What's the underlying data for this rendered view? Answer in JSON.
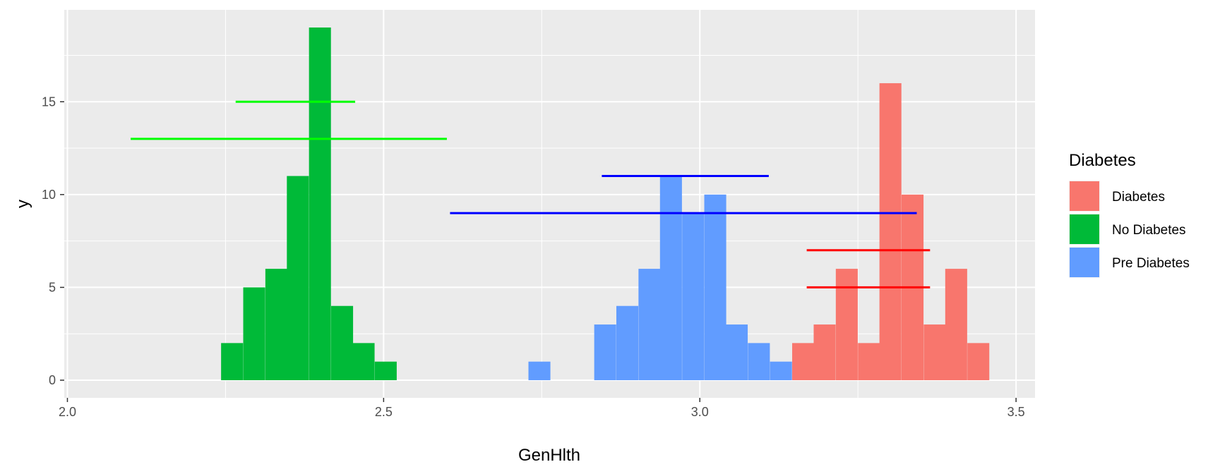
{
  "chart_data": {
    "type": "bar",
    "title": "",
    "xlabel": "GenHlth",
    "ylabel": "y",
    "xlim": [
      1.995,
      3.53
    ],
    "ylim": [
      -0.95,
      19.95
    ],
    "x_ticks": [
      2.0,
      2.5,
      3.0,
      3.5
    ],
    "x_tick_labels": [
      "2.0",
      "2.5",
      "3.0",
      "3.5"
    ],
    "y_ticks": [
      0,
      5,
      10,
      15
    ],
    "y_tick_labels": [
      "0",
      "5",
      "10",
      "15"
    ],
    "grid": true,
    "bin_width": 0.0347,
    "legend": {
      "title": "Diabetes",
      "placement": "right",
      "entries": [
        {
          "label": "Diabetes",
          "color": "#F8766D"
        },
        {
          "label": "No Diabetes",
          "color": "#00BA38"
        },
        {
          "label": "Pre Diabetes",
          "color": "#619CFF"
        }
      ]
    },
    "series": [
      {
        "name": "No Diabetes",
        "color": "#00BA38",
        "bins": [
          {
            "x0": 2.243,
            "count": 2
          },
          {
            "x0": 2.278,
            "count": 5
          },
          {
            "x0": 2.313,
            "count": 6
          },
          {
            "x0": 2.347,
            "count": 11
          },
          {
            "x0": 2.382,
            "count": 19
          },
          {
            "x0": 2.417,
            "count": 4
          },
          {
            "x0": 2.451,
            "count": 2
          },
          {
            "x0": 2.486,
            "count": 1
          }
        ]
      },
      {
        "name": "Pre Diabetes",
        "color": "#619CFF",
        "bins": [
          {
            "x0": 2.729,
            "count": 1
          },
          {
            "x0": 2.833,
            "count": 3
          },
          {
            "x0": 2.868,
            "count": 4
          },
          {
            "x0": 2.903,
            "count": 6
          },
          {
            "x0": 2.937,
            "count": 11
          },
          {
            "x0": 2.972,
            "count": 9
          },
          {
            "x0": 3.007,
            "count": 10
          },
          {
            "x0": 3.041,
            "count": 3
          },
          {
            "x0": 3.076,
            "count": 2
          },
          {
            "x0": 3.111,
            "count": 1
          }
        ]
      },
      {
        "name": "Diabetes",
        "color": "#F8766D",
        "bins": [
          {
            "x0": 3.146,
            "count": 2
          },
          {
            "x0": 3.18,
            "count": 3
          },
          {
            "x0": 3.215,
            "count": 6
          },
          {
            "x0": 3.25,
            "count": 2
          },
          {
            "x0": 3.284,
            "count": 16
          },
          {
            "x0": 3.319,
            "count": 10
          },
          {
            "x0": 3.354,
            "count": 3
          },
          {
            "x0": 3.388,
            "count": 6
          },
          {
            "x0": 3.423,
            "count": 2
          }
        ]
      }
    ],
    "segments": [
      {
        "group": "No Diabetes",
        "color": "#00FF00",
        "x0": 2.266,
        "x1": 2.455,
        "y": 15
      },
      {
        "group": "No Diabetes",
        "color": "#00FF00",
        "x0": 2.1,
        "x1": 2.6,
        "y": 13
      },
      {
        "group": "Pre Diabetes",
        "color": "#0000FF",
        "x0": 2.845,
        "x1": 3.109,
        "y": 11
      },
      {
        "group": "Pre Diabetes",
        "color": "#0000FF",
        "x0": 2.605,
        "x1": 3.343,
        "y": 9
      },
      {
        "group": "Diabetes",
        "color": "#FF0000",
        "x0": 3.169,
        "x1": 3.364,
        "y": 7
      },
      {
        "group": "Diabetes",
        "color": "#FF0000",
        "x0": 3.169,
        "x1": 3.364,
        "y": 5
      }
    ]
  }
}
